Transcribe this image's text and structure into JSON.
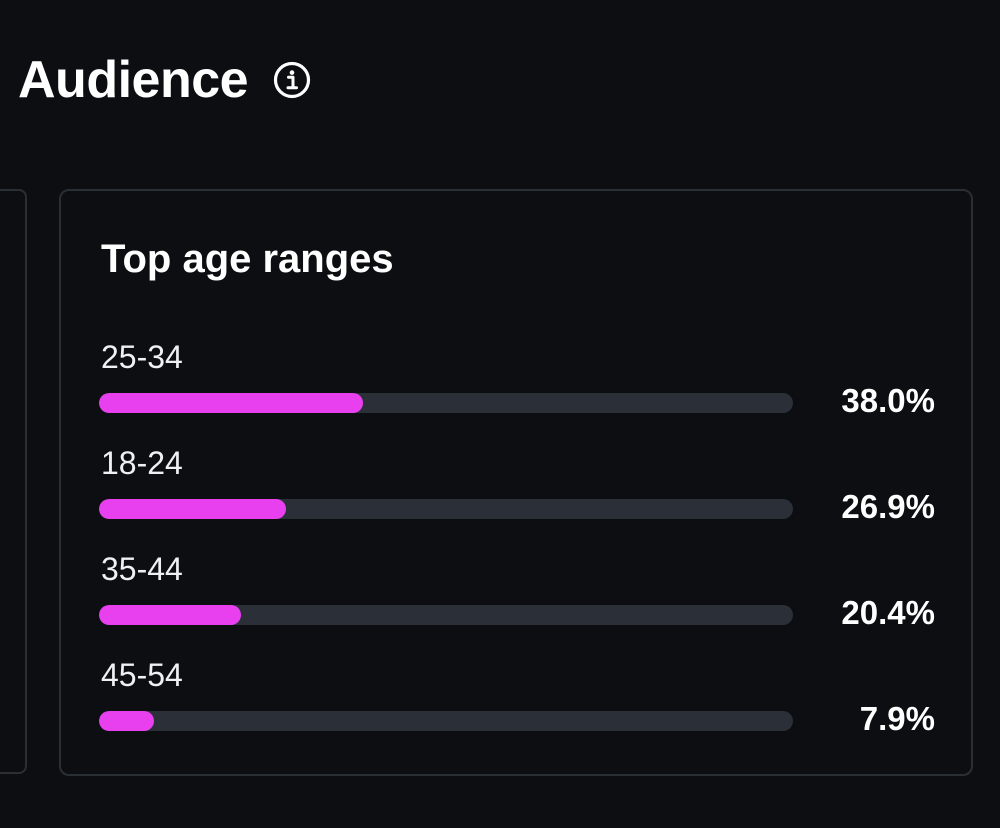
{
  "header": {
    "title": "Audience",
    "info_icon": "info-circle-icon"
  },
  "card": {
    "title": "Top age ranges",
    "accent_color": "#e940ef",
    "track_color": "#2b2f37",
    "rows": [
      {
        "label": "25-34",
        "value": "38.0%",
        "fraction": 0.38
      },
      {
        "label": "18-24",
        "value": "26.9%",
        "fraction": 0.269
      },
      {
        "label": "35-44",
        "value": "20.4%",
        "fraction": 0.204
      },
      {
        "label": "45-54",
        "value": "7.9%",
        "fraction": 0.079
      }
    ]
  }
}
